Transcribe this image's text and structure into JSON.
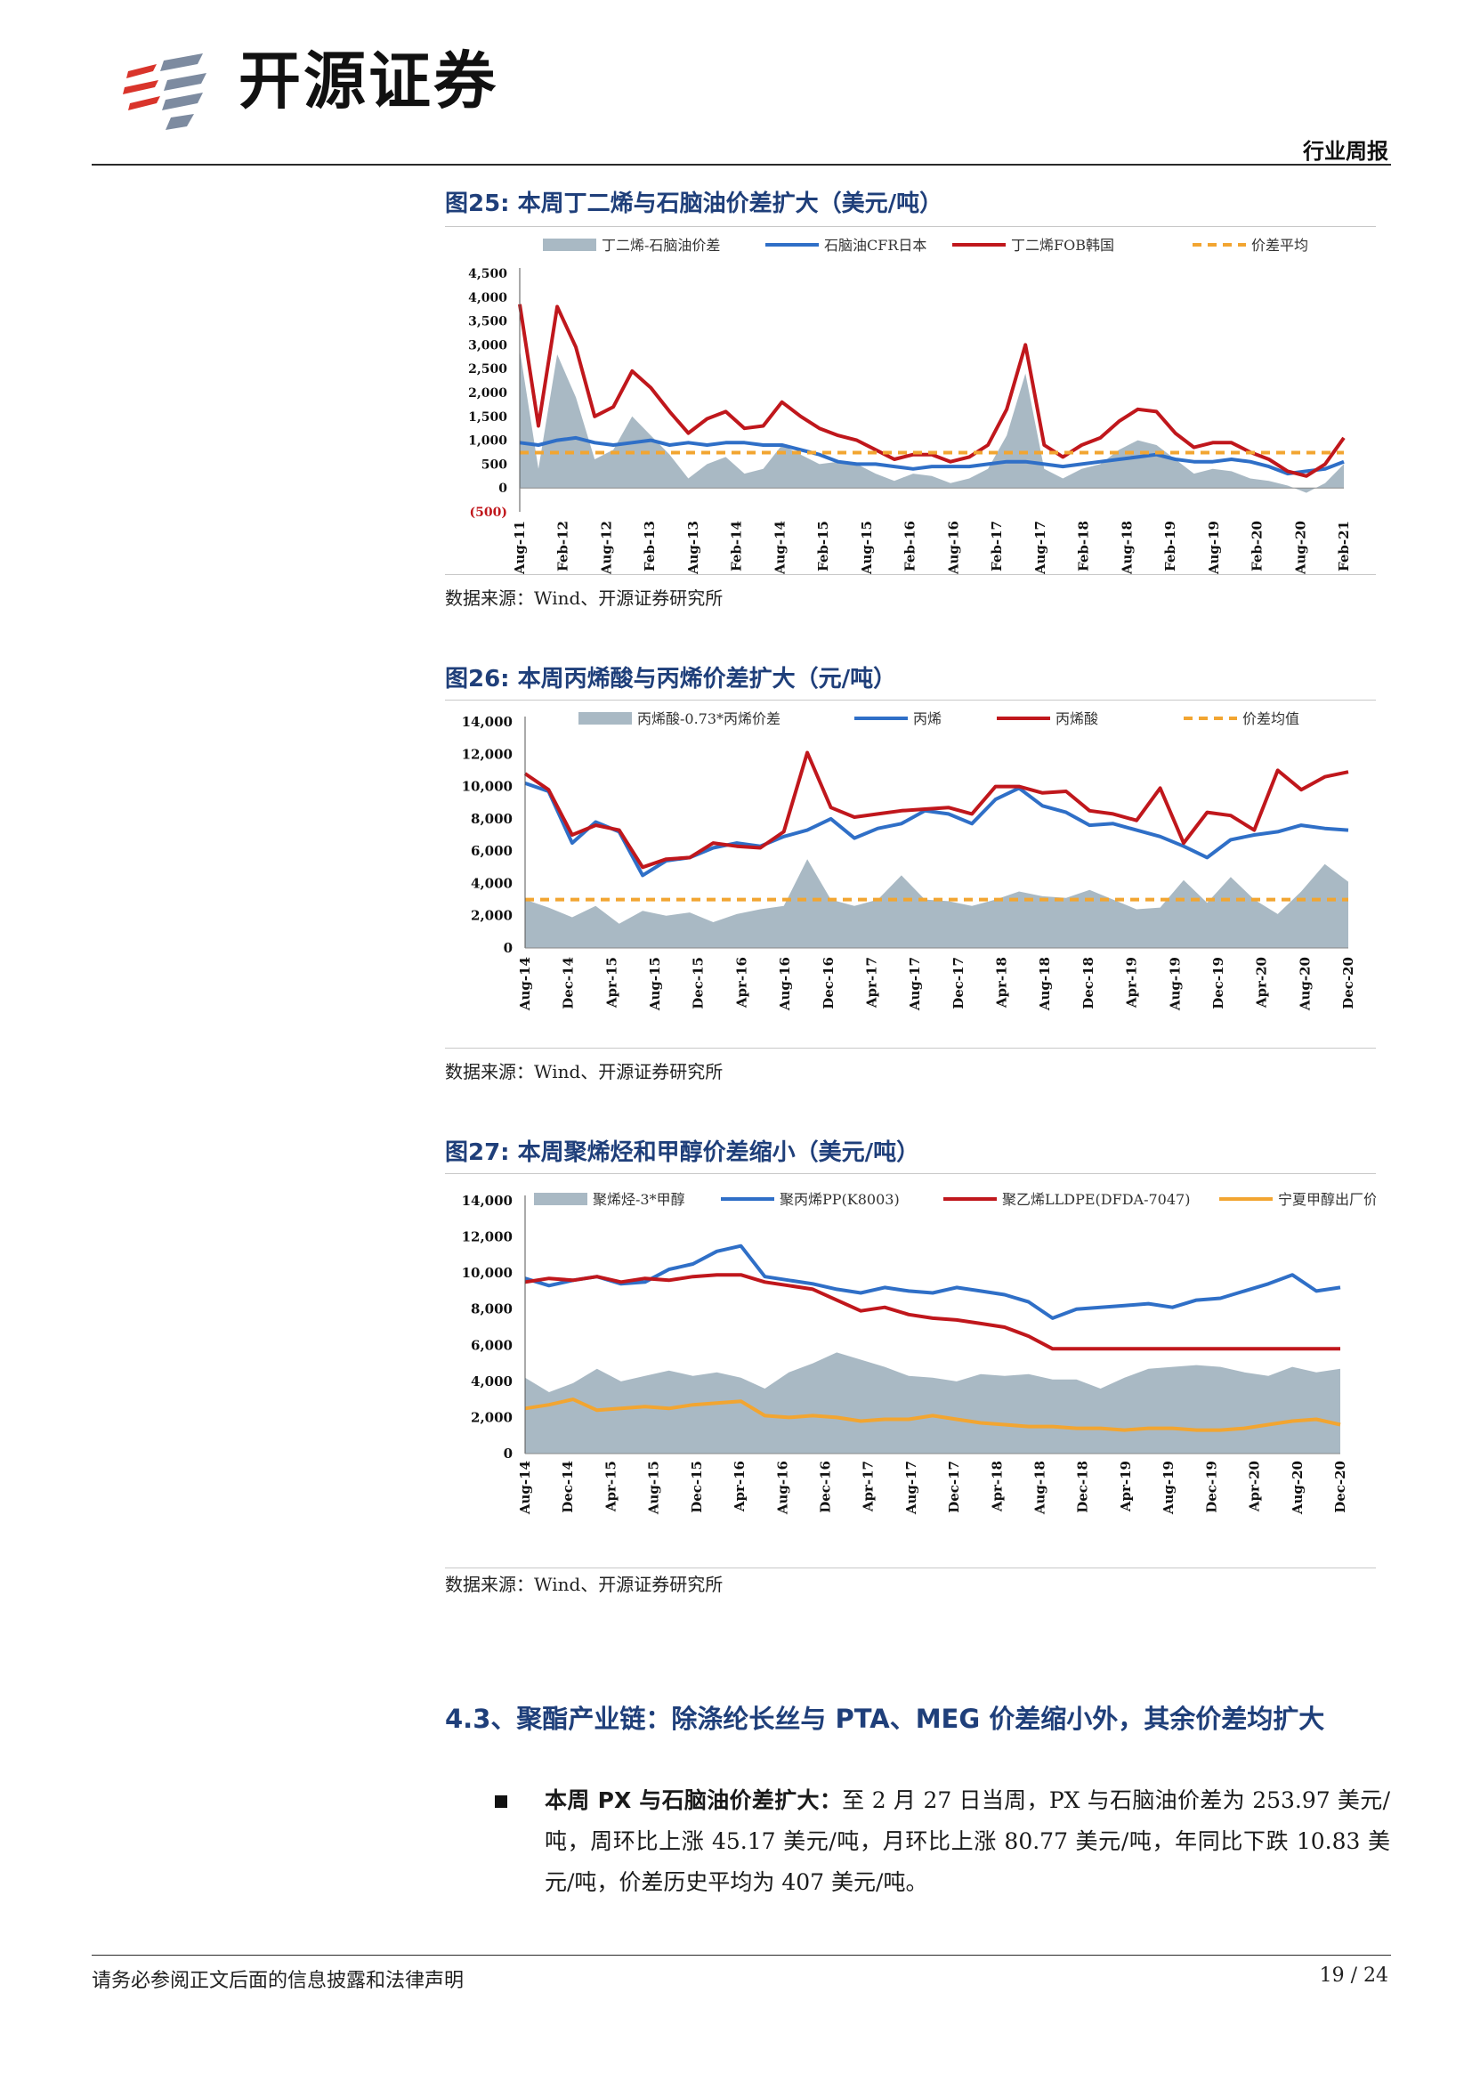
{
  "header": {
    "logo_text": "开源证券",
    "doc_type": "行业周报"
  },
  "figures": [
    {
      "label": "图25:",
      "title": "本周丁二烯与石脑油价差扩大（美元/吨）",
      "source": "数据来源：Wind、开源证券研究所"
    },
    {
      "label": "图26:",
      "title": "本周丙烯酸与丙烯价差扩大（元/吨）",
      "source": "数据来源：Wind、开源证券研究所"
    },
    {
      "label": "图27:",
      "title": "本周聚烯烃和甲醇价差缩小（美元/吨）",
      "source": "数据来源：Wind、开源证券研究所"
    }
  ],
  "section": {
    "number": "4.3、",
    "title": "聚酯产业链：除涤纶长丝与 PTA、MEG 价差缩小外，其余价差均扩大"
  },
  "paragraph": {
    "lead": "本周 PX 与石脑油价差扩大：",
    "body": "至 2 月 27 日当周，PX 与石脑油价差为 253.97 美元/吨，周环比上涨 45.17 美元/吨，月环比上涨 80.77 美元/吨，年同比下跌 10.83 美元/吨，价差历史平均为 407 美元/吨。"
  },
  "footer": {
    "disclaimer": "请务必参阅正文后面的信息披露和法律声明",
    "page": "19 / 24"
  },
  "colors": {
    "spread_area": "#a9b9c4",
    "blue": "#2f6fc7",
    "red": "#c0171c",
    "orange": "#f2a531",
    "title_blue": "#1f3f7a"
  },
  "chart_data": [
    {
      "type": "line",
      "ylim": [
        -500,
        4500
      ],
      "yticks": [
        "4,500",
        "4,000",
        "3,500",
        "3,000",
        "2,500",
        "2,000",
        "1,500",
        "1,000",
        "500",
        "0",
        "(500)"
      ],
      "xticks": [
        "Aug-11",
        "Feb-12",
        "Aug-12",
        "Feb-13",
        "Aug-13",
        "Feb-14",
        "Aug-14",
        "Feb-15",
        "Aug-15",
        "Feb-16",
        "Aug-16",
        "Feb-17",
        "Aug-17",
        "Feb-18",
        "Aug-18",
        "Feb-19",
        "Aug-19",
        "Feb-20",
        "Aug-20",
        "Feb-21"
      ],
      "series": [
        {
          "name": "丁二烯-石脑油价差",
          "kind": "area",
          "color": "#a9b9c4",
          "values": [
            2900,
            400,
            2800,
            1900,
            600,
            800,
            1500,
            1100,
            700,
            200,
            500,
            650,
            300,
            400,
            900,
            700,
            500,
            550,
            500,
            300,
            150,
            300,
            250,
            100,
            200,
            400,
            1100,
            2400,
            400,
            200,
            400,
            500,
            800,
            1000,
            900,
            600,
            300,
            400,
            350,
            200,
            150,
            50,
            -100,
            100,
            500
          ]
        },
        {
          "name": "石脑油CFR日本",
          "kind": "line",
          "color": "#2f6fc7",
          "values": [
            950,
            900,
            1000,
            1050,
            950,
            900,
            950,
            1000,
            900,
            950,
            900,
            950,
            950,
            900,
            900,
            800,
            700,
            550,
            500,
            500,
            450,
            400,
            450,
            450,
            450,
            500,
            550,
            550,
            500,
            450,
            500,
            550,
            600,
            650,
            700,
            600,
            550,
            550,
            600,
            550,
            450,
            300,
            350,
            400,
            550
          ]
        },
        {
          "name": "丁二烯FOB韩国",
          "kind": "line",
          "color": "#c0171c",
          "values": [
            3850,
            1300,
            3800,
            2950,
            1500,
            1700,
            2450,
            2100,
            1600,
            1150,
            1450,
            1600,
            1250,
            1300,
            1800,
            1500,
            1250,
            1100,
            1000,
            800,
            600,
            700,
            700,
            550,
            650,
            900,
            1650,
            3000,
            900,
            650,
            900,
            1050,
            1400,
            1650,
            1600,
            1150,
            850,
            950,
            950,
            750,
            600,
            350,
            250,
            500,
            1050
          ]
        },
        {
          "name": "价差平均",
          "kind": "dash",
          "color": "#f2a531",
          "values": [
            740,
            740
          ]
        }
      ]
    },
    {
      "type": "line",
      "ylim": [
        0,
        14000
      ],
      "yticks": [
        "14,000",
        "12,000",
        "10,000",
        "8,000",
        "6,000",
        "4,000",
        "2,000",
        "0"
      ],
      "xticks": [
        "Aug-14",
        "Dec-14",
        "Apr-15",
        "Aug-15",
        "Dec-15",
        "Apr-16",
        "Aug-16",
        "Dec-16",
        "Apr-17",
        "Aug-17",
        "Dec-17",
        "Apr-18",
        "Aug-18",
        "Dec-18",
        "Apr-19",
        "Aug-19",
        "Dec-19",
        "Apr-20",
        "Aug-20",
        "Dec-20"
      ],
      "series": [
        {
          "name": "丙烯酸-0.73*丙烯价差",
          "kind": "area",
          "color": "#a9b9c4",
          "values": [
            3000,
            2500,
            1900,
            2600,
            1500,
            2300,
            2000,
            2200,
            1600,
            2100,
            2400,
            2600,
            5500,
            3000,
            2600,
            3000,
            4500,
            3000,
            2900,
            2600,
            3000,
            3500,
            3200,
            3100,
            3600,
            3000,
            2400,
            2500,
            4200,
            2800,
            4400,
            3000,
            2100,
            3500,
            5200,
            4100
          ]
        },
        {
          "name": "丙烯",
          "kind": "line",
          "color": "#2f6fc7",
          "values": [
            10200,
            9700,
            6500,
            7800,
            7200,
            4500,
            5400,
            5600,
            6200,
            6500,
            6300,
            6900,
            7300,
            8000,
            6800,
            7400,
            7700,
            8500,
            8300,
            7700,
            9200,
            9900,
            8800,
            8400,
            7600,
            7700,
            7300,
            6900,
            6300,
            5600,
            6700,
            7000,
            7200,
            7600,
            7400,
            7300
          ]
        },
        {
          "name": "丙烯酸",
          "kind": "line",
          "color": "#c0171c",
          "values": [
            10800,
            9800,
            7000,
            7600,
            7300,
            5000,
            5500,
            5600,
            6500,
            6300,
            6200,
            7200,
            12100,
            8700,
            8100,
            8300,
            8500,
            8600,
            8700,
            8300,
            10000,
            10000,
            9600,
            9700,
            8500,
            8300,
            7900,
            9900,
            6500,
            8400,
            8200,
            7300,
            11000,
            9800,
            10600,
            10900
          ]
        },
        {
          "name": "价差均值",
          "kind": "dash",
          "color": "#f2a531",
          "values": [
            3000,
            3000
          ]
        }
      ]
    },
    {
      "type": "line",
      "ylim": [
        0,
        14000
      ],
      "yticks": [
        "14,000",
        "12,000",
        "10,000",
        "8,000",
        "6,000",
        "4,000",
        "2,000",
        "0"
      ],
      "xticks": [
        "Aug-14",
        "Dec-14",
        "Apr-15",
        "Aug-15",
        "Dec-15",
        "Apr-16",
        "Aug-16",
        "Dec-16",
        "Apr-17",
        "Aug-17",
        "Dec-17",
        "Apr-18",
        "Aug-18",
        "Dec-18",
        "Apr-19",
        "Aug-19",
        "Dec-19",
        "Apr-20",
        "Aug-20",
        "Dec-20"
      ],
      "series": [
        {
          "name": "聚烯烃-3*甲醇",
          "kind": "area",
          "color": "#a9b9c4",
          "values": [
            4200,
            3400,
            3900,
            4700,
            4000,
            4300,
            4600,
            4300,
            4500,
            4200,
            3600,
            4500,
            5000,
            5600,
            5200,
            4800,
            4300,
            4200,
            4000,
            4400,
            4300,
            4400,
            4100,
            4100,
            3600,
            4200,
            4700,
            4800,
            4900,
            4800,
            4500,
            4300,
            4800,
            4500,
            4700
          ]
        },
        {
          "name": "聚丙烯PP(K8003)",
          "kind": "line",
          "color": "#2f6fc7",
          "values": [
            9700,
            9300,
            9600,
            9800,
            9400,
            9500,
            10200,
            10500,
            11200,
            11500,
            9800,
            9600,
            9400,
            9100,
            8900,
            9200,
            9000,
            8900,
            9200,
            9000,
            8800,
            8400,
            7500,
            8000,
            8100,
            8200,
            8300,
            8100,
            8500,
            8600,
            9000,
            9400,
            9900,
            9000,
            9200
          ]
        },
        {
          "name": "聚乙烯LLDPE(DFDA-7047)",
          "kind": "line",
          "color": "#c0171c",
          "values": [
            9500,
            9700,
            9600,
            9800,
            9500,
            9700,
            9600,
            9800,
            9900,
            9900,
            9500,
            9300,
            9100,
            8500,
            7900,
            8100,
            7700,
            7500,
            7400,
            7200,
            7000,
            6500,
            5800,
            5800,
            5800,
            5800,
            5800,
            5800,
            5800,
            5800,
            5800,
            5800,
            5800,
            5800,
            5800
          ]
        },
        {
          "name": "宁夏甲醇出厂价",
          "kind": "line",
          "color": "#f2a531",
          "values": [
            2500,
            2700,
            3000,
            2400,
            2500,
            2600,
            2500,
            2700,
            2800,
            2900,
            2100,
            2000,
            2100,
            2000,
            1800,
            1900,
            1900,
            2100,
            1900,
            1700,
            1600,
            1500,
            1500,
            1400,
            1400,
            1300,
            1400,
            1400,
            1300,
            1300,
            1400,
            1600,
            1800,
            1900,
            1600
          ]
        }
      ]
    }
  ]
}
